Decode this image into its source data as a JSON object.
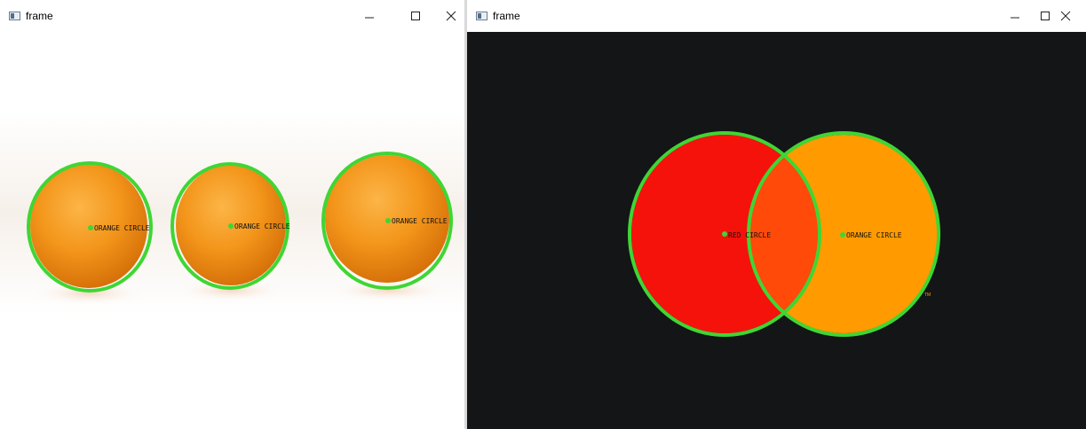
{
  "windows": [
    {
      "title": "frame",
      "labels": [
        "ORANGE CIRCLE",
        "ORANGE CIRCLE",
        "ORANGE CIRCLE"
      ]
    },
    {
      "title": "frame",
      "labels": [
        "RED CIRCLE",
        "ORANGE CIRCLE"
      ],
      "mark": "TM"
    }
  ],
  "colors": {
    "detect_circle": "#3fd634",
    "center_dot": "#3fd634",
    "orange_fill": "#ff9b00",
    "red_fill": "#f5120b",
    "overlap_fill": "#ff4a0a",
    "dark_bg": "#131516"
  },
  "icons": [
    "app-icon",
    "minimize-icon",
    "maximize-icon",
    "close-icon"
  ]
}
